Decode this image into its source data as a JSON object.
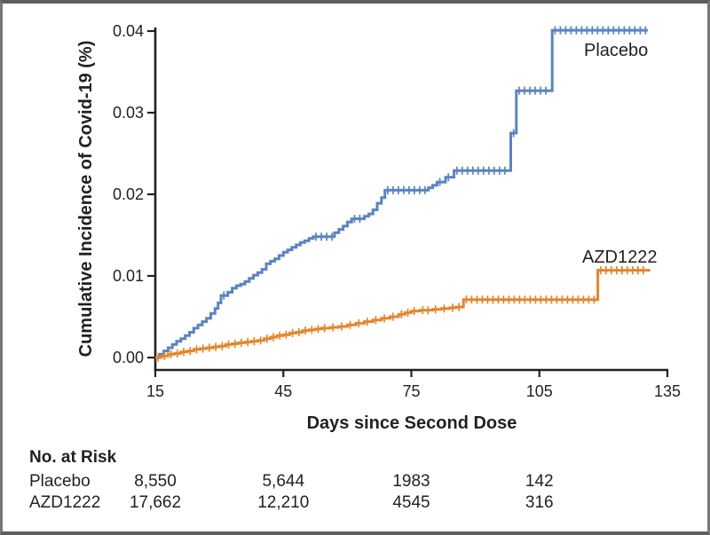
{
  "chart_data": {
    "type": "line",
    "style": "kaplan-meier-step-cumulative-incidence",
    "title": "",
    "xlabel": "Days since Second Dose",
    "ylabel": "Cumulative Incidence of Covid-19 (%)",
    "xlim": [
      15,
      135
    ],
    "ylim": [
      0,
      0.04
    ],
    "x_ticks": [
      15,
      45,
      75,
      105,
      135
    ],
    "y_ticks": [
      0,
      0.01,
      0.02,
      0.03,
      0.04
    ],
    "y_tick_labels": [
      "0.00",
      "0.01",
      "0.02",
      "0.03",
      "0.04"
    ],
    "grid": false,
    "legend_position": "labels-on-curve",
    "censoring_marks": "dense vertical tick marks along both curves",
    "series": [
      {
        "name": "Placebo",
        "color": "#5b84c0",
        "points": [
          [
            15,
            0
          ],
          [
            16,
            0.0004
          ],
          [
            17,
            0.0008
          ],
          [
            18,
            0.0012
          ],
          [
            19,
            0.0016
          ],
          [
            20,
            0.002
          ],
          [
            21,
            0.0023
          ],
          [
            22,
            0.0027
          ],
          [
            23,
            0.0031
          ],
          [
            24,
            0.0036
          ],
          [
            25,
            0.004
          ],
          [
            26,
            0.0044
          ],
          [
            27,
            0.0048
          ],
          [
            28,
            0.0054
          ],
          [
            29,
            0.006
          ],
          [
            29.7,
            0.0067
          ],
          [
            30.4,
            0.0076
          ],
          [
            32,
            0.008
          ],
          [
            33,
            0.0085
          ],
          [
            34,
            0.0088
          ],
          [
            35,
            0.009
          ],
          [
            36,
            0.0093
          ],
          [
            37,
            0.0097
          ],
          [
            38,
            0.0101
          ],
          [
            39,
            0.0104
          ],
          [
            40,
            0.0108
          ],
          [
            41,
            0.0115
          ],
          [
            42,
            0.0118
          ],
          [
            43,
            0.0121
          ],
          [
            44,
            0.0125
          ],
          [
            45,
            0.0129
          ],
          [
            46,
            0.0132
          ],
          [
            47,
            0.0135
          ],
          [
            48,
            0.0138
          ],
          [
            49,
            0.0141
          ],
          [
            50,
            0.0143
          ],
          [
            51,
            0.0146
          ],
          [
            52,
            0.0148
          ],
          [
            57,
            0.0153
          ],
          [
            58,
            0.0157
          ],
          [
            59,
            0.0161
          ],
          [
            60,
            0.0166
          ],
          [
            61,
            0.017
          ],
          [
            64,
            0.0173
          ],
          [
            65,
            0.0176
          ],
          [
            66,
            0.0181
          ],
          [
            67,
            0.0189
          ],
          [
            68,
            0.0196
          ],
          [
            68.8,
            0.0205
          ],
          [
            79,
            0.0208
          ],
          [
            80,
            0.0211
          ],
          [
            81,
            0.0215
          ],
          [
            83,
            0.0221
          ],
          [
            85,
            0.0229
          ],
          [
            98.3,
            0.0275
          ],
          [
            99.6,
            0.0327
          ],
          [
            108,
            0.0401
          ],
          [
            130.4,
            0.0401
          ]
        ]
      },
      {
        "name": "AZD1222",
        "color": "#e2872d",
        "points": [
          [
            15,
            0
          ],
          [
            16.5,
            0.0002
          ],
          [
            18,
            0.0004
          ],
          [
            19.5,
            0.0005
          ],
          [
            21,
            0.0007
          ],
          [
            22.5,
            0.0008
          ],
          [
            24,
            0.001
          ],
          [
            25.5,
            0.0011
          ],
          [
            27,
            0.0012
          ],
          [
            28.5,
            0.0013
          ],
          [
            30,
            0.0014
          ],
          [
            31.5,
            0.0016
          ],
          [
            33,
            0.0017
          ],
          [
            34.5,
            0.0018
          ],
          [
            36,
            0.0019
          ],
          [
            37.5,
            0.002
          ],
          [
            39,
            0.0021
          ],
          [
            40.5,
            0.0023
          ],
          [
            42,
            0.0025
          ],
          [
            43.5,
            0.0027
          ],
          [
            45,
            0.0028
          ],
          [
            46.5,
            0.003
          ],
          [
            48,
            0.0031
          ],
          [
            49.5,
            0.0033
          ],
          [
            51,
            0.0034
          ],
          [
            52.5,
            0.0035
          ],
          [
            54,
            0.0036
          ],
          [
            56,
            0.0037
          ],
          [
            58,
            0.0038
          ],
          [
            60,
            0.004
          ],
          [
            62,
            0.0042
          ],
          [
            64,
            0.0044
          ],
          [
            66,
            0.0046
          ],
          [
            68,
            0.0048
          ],
          [
            70,
            0.005
          ],
          [
            72,
            0.0053
          ],
          [
            73.5,
            0.0055
          ],
          [
            75,
            0.0057
          ],
          [
            77,
            0.0058
          ],
          [
            80,
            0.0059
          ],
          [
            82,
            0.006
          ],
          [
            84,
            0.0061
          ],
          [
            85.5,
            0.0062
          ],
          [
            87.2,
            0.0071
          ],
          [
            118.7,
            0.0107
          ],
          [
            131,
            0.0107
          ]
        ]
      }
    ],
    "no_at_risk": {
      "title": "No. at Risk",
      "column_days": [
        15,
        45,
        75,
        105
      ],
      "rows": [
        {
          "label": "Placebo",
          "values": [
            "8,550",
            "5,644",
            "1983",
            "142"
          ]
        },
        {
          "label": "AZD1222",
          "values": [
            "17,662",
            "12,210",
            "4545",
            "316"
          ]
        }
      ]
    },
    "colors": {
      "axis": "#231f20",
      "text": "#231f20",
      "placebo_curve": "#5b84c0",
      "azd1222_curve": "#e2872d",
      "frame_border": "#6e6e6e",
      "background": "#ffffff"
    }
  }
}
